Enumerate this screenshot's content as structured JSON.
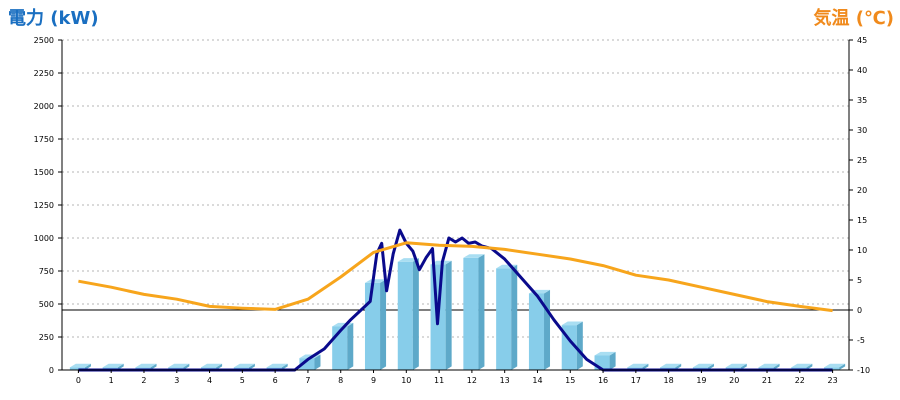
{
  "chart_data": {
    "type": "bar",
    "ylabel": "電力 (kW)",
    "y2label": "気温 (℃)",
    "colors": {
      "bar": "#87cdea",
      "bar_side": "#5ea9c9",
      "bar_top": "#a9def2",
      "power_line": "#0a0a8c",
      "temp_line": "#f7a51c",
      "ylabel": "#1a6fc1",
      "y2label": "#f08a1c"
    },
    "categories": [
      "0",
      "1",
      "2",
      "3",
      "4",
      "5",
      "6",
      "7",
      "8",
      "9",
      "10",
      "11",
      "12",
      "13",
      "14",
      "15",
      "16",
      "17",
      "18",
      "19",
      "20",
      "21",
      "22",
      "23"
    ],
    "ylim": [
      0,
      2500
    ],
    "yticks": [
      "0",
      "250",
      "500",
      "750",
      "1000",
      "1250",
      "1500",
      "1750",
      "2000",
      "2250",
      "2500"
    ],
    "y2lim": [
      -10,
      45
    ],
    "y2ticks": [
      "-10",
      "-5",
      "0",
      "5",
      "10",
      "15",
      "20",
      "25",
      "30",
      "35",
      "40",
      "45"
    ],
    "grid": true,
    "series": [
      {
        "type": "bar",
        "axis": "left",
        "values": [
          20,
          20,
          20,
          20,
          20,
          20,
          20,
          90,
          330,
          660,
          820,
          800,
          850,
          770,
          580,
          340,
          110,
          20,
          20,
          20,
          20,
          20,
          20,
          20
        ]
      },
      {
        "type": "line",
        "axis": "left",
        "x": [
          0,
          1,
          2,
          3,
          4,
          5,
          6,
          6.6,
          7,
          7.5,
          8,
          8.3,
          8.6,
          8.9,
          9.1,
          9.25,
          9.4,
          9.6,
          9.8,
          10,
          10.2,
          10.4,
          10.6,
          10.8,
          10.95,
          11.1,
          11.3,
          11.5,
          11.7,
          11.9,
          12.1,
          12.3,
          12.6,
          13,
          13.5,
          14,
          14.5,
          15,
          15.5,
          16,
          17,
          18,
          19,
          20,
          21,
          22,
          23
        ],
        "values": [
          0,
          0,
          0,
          0,
          0,
          0,
          0,
          0,
          80,
          160,
          300,
          380,
          450,
          520,
          880,
          960,
          600,
          880,
          1060,
          960,
          900,
          760,
          850,
          920,
          350,
          820,
          1000,
          970,
          1000,
          960,
          970,
          940,
          920,
          840,
          700,
          560,
          380,
          220,
          80,
          0,
          0,
          0,
          0,
          0,
          0,
          0,
          0
        ]
      },
      {
        "type": "line",
        "axis": "right",
        "values": [
          4.8,
          3.8,
          2.6,
          1.8,
          0.6,
          0.3,
          0.1,
          1.8,
          5.5,
          9.6,
          11.2,
          10.8,
          10.6,
          10.1,
          9.3,
          8.5,
          7.4,
          5.8,
          5.0,
          3.8,
          2.6,
          1.4,
          0.6,
          -0.1
        ]
      }
    ]
  }
}
